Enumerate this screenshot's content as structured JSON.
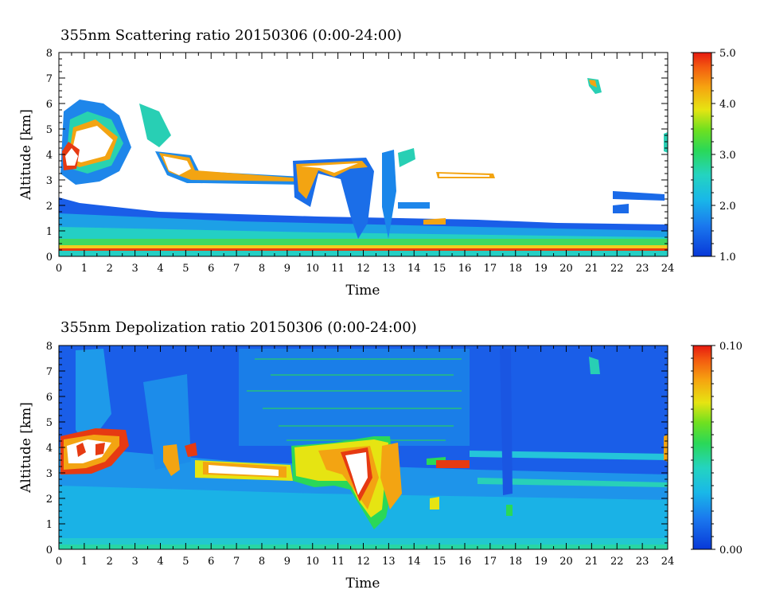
{
  "chart_data": [
    {
      "type": "heatmap",
      "title": "355nm Scattering ratio  20150306 (0:00-24:00)",
      "xlabel": "Time",
      "ylabel": "Altitude [km]",
      "xlim": [
        0,
        24
      ],
      "ylim": [
        0,
        8
      ],
      "x_ticks": [
        "0",
        "1",
        "2",
        "3",
        "4",
        "5",
        "6",
        "7",
        "8",
        "9",
        "10",
        "11",
        "12",
        "13",
        "14",
        "15",
        "16",
        "17",
        "18",
        "19",
        "20",
        "21",
        "22",
        "23",
        "24"
      ],
      "y_ticks": [
        "0",
        "1",
        "2",
        "3",
        "4",
        "5",
        "6",
        "7",
        "8"
      ],
      "colorbar": {
        "min": 1.0,
        "max": 5.0,
        "ticks": [
          "1.0",
          "2.0",
          "3.0",
          "4.0",
          "5.0"
        ],
        "colormap": "rainbow (blue-cyan-green-yellow-orange-red), white = out of range / no signal"
      },
      "features": [
        {
          "name": "boundary-layer",
          "time": [
            0,
            24
          ],
          "altitude_top_km": [
            2.2,
            1.3
          ],
          "value_range": [
            1.0,
            2.0
          ]
        },
        {
          "name": "surface-layer",
          "time": [
            0,
            24
          ],
          "altitude_km": [
            0.3,
            0.5
          ],
          "value_range": [
            3.0,
            5.0
          ]
        },
        {
          "name": "cloud-morning",
          "time": [
            0,
            3
          ],
          "altitude_km": [
            3.0,
            6.5
          ],
          "value": ">5.0"
        },
        {
          "name": "elevated-layer",
          "time": [
            3.5,
            9.5
          ],
          "altitude_km": [
            2.8,
            4.2
          ],
          "value_range": [
            2.0,
            5.0
          ]
        },
        {
          "name": "cloud-midday",
          "time": [
            9,
            13.5
          ],
          "altitude_km": [
            0.5,
            4.0
          ],
          "value_range": [
            1.5,
            5.0
          ]
        },
        {
          "name": "cloud-21h",
          "time": [
            20.8,
            21.4
          ],
          "altitude_km": [
            6.5,
            7.0
          ],
          "value_range": [
            2.0,
            5.0
          ]
        }
      ]
    },
    {
      "type": "heatmap",
      "title": "355nm Depolization ratio  20150306 (0:00-24:00)",
      "xlabel": "Time",
      "ylabel": "Altitude [km]",
      "xlim": [
        0,
        24
      ],
      "ylim": [
        0,
        8
      ],
      "x_ticks": [
        "0",
        "1",
        "2",
        "3",
        "4",
        "5",
        "6",
        "7",
        "8",
        "9",
        "10",
        "11",
        "12",
        "13",
        "14",
        "15",
        "16",
        "17",
        "18",
        "19",
        "20",
        "21",
        "22",
        "23",
        "24"
      ],
      "y_ticks": [
        "0",
        "1",
        "2",
        "3",
        "4",
        "5",
        "6",
        "7",
        "8"
      ],
      "colorbar": {
        "min": 0.0,
        "max": 0.1,
        "ticks": [
          "0.00",
          "0.10"
        ],
        "colormap": "rainbow (blue-cyan-green-yellow-orange-red), white = out of range"
      },
      "features": [
        {
          "name": "background-noise",
          "time": [
            2.5,
            16.5
          ],
          "altitude_km": [
            4.0,
            8.0
          ],
          "value_range": [
            0.0,
            0.1
          ]
        },
        {
          "name": "cloud-morning",
          "time": [
            0,
            3
          ],
          "altitude_km": [
            3.0,
            4.5
          ],
          "value": ">0.10"
        },
        {
          "name": "elevated-layer",
          "time": [
            5,
            9
          ],
          "altitude_km": [
            2.8,
            3.5
          ],
          "value": ">0.10"
        },
        {
          "name": "cloud-midday",
          "time": [
            9,
            13.5
          ],
          "altitude_km": [
            1.2,
            4.0
          ],
          "value": ">0.10"
        },
        {
          "name": "layer-15-16h",
          "time": [
            14.8,
            16.2
          ],
          "altitude_km": [
            3.2,
            3.4
          ],
          "value_range": [
            0.07,
            0.1
          ]
        },
        {
          "name": "low-boundary",
          "time": [
            0,
            24
          ],
          "altitude_km": [
            0.0,
            0.3
          ],
          "value_range": [
            0.02,
            0.04
          ]
        }
      ]
    }
  ]
}
